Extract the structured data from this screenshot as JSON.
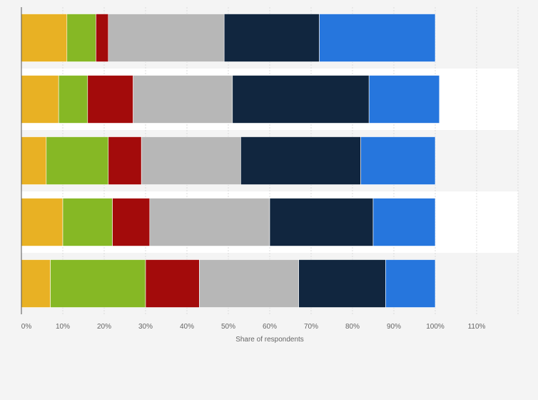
{
  "chart_data": {
    "type": "bar",
    "orientation": "horizontal",
    "stacked": true,
    "title": "",
    "xlabel": "Share of respondents",
    "ylabel": "",
    "xlim": [
      0,
      120
    ],
    "x_ticks": [
      "0%",
      "10%",
      "20%",
      "30%",
      "40%",
      "50%",
      "60%",
      "70%",
      "80%",
      "90%",
      "100%",
      "110%"
    ],
    "grid": true,
    "legend": "none",
    "categories": [
      "",
      "",
      "",
      "",
      ""
    ],
    "series": [
      {
        "color": "#e8b124",
        "values": [
          11,
          9,
          6,
          10,
          7
        ]
      },
      {
        "color": "#86b825",
        "values": [
          7,
          7,
          15,
          12,
          23
        ]
      },
      {
        "color": "#a30b0b",
        "values": [
          3,
          11,
          8,
          9,
          13
        ]
      },
      {
        "color": "#b7b7b7",
        "values": [
          28,
          24,
          24,
          29,
          24
        ]
      },
      {
        "color": "#11263f",
        "values": [
          23,
          33,
          29,
          25,
          21
        ]
      },
      {
        "color": "#2676dd",
        "values": [
          28,
          17,
          18,
          15,
          12
        ]
      }
    ]
  }
}
